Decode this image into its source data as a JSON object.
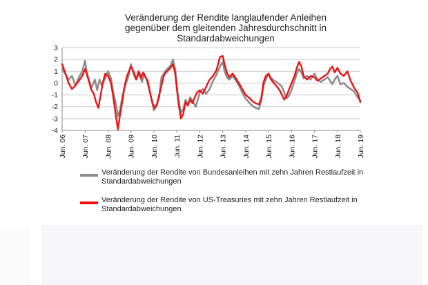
{
  "chart_data": {
    "type": "line",
    "title": [
      "Veränderung der Rendite langlaufender Anleihen",
      "gegenüber dem gleitenden Jahresdurchschnitt in",
      "Standardabweichungen"
    ],
    "xlabel": "",
    "ylabel": "",
    "ylim": [
      -4,
      3
    ],
    "y_ticks": [
      "3",
      "2",
      "1",
      "0",
      "-1",
      "-2",
      "-3",
      "-4"
    ],
    "x_ticks": [
      "Jun. 06",
      "Jun. 07",
      "Jun. 08",
      "Jun. 09",
      "Jun. 10",
      "Jun. 11",
      "Jun. 12",
      "Jun. 13",
      "Jun. 14",
      "Jun. 15",
      "Jun. 16",
      "Jun. 17",
      "Jun. 18",
      "Jun. 19"
    ],
    "xlim": [
      2006.42,
      2019.42
    ],
    "grid": "horizontal",
    "legend": "bottom",
    "series": [
      {
        "name": "Veränderung der Rendite von Bundesanleihen mit zehn Jahren Restlaufzeit in Standardabweichungen",
        "color": "#8c8c8c",
        "x": [
          2006.42,
          2006.55,
          2006.7,
          2006.85,
          2007.0,
          2007.15,
          2007.3,
          2007.42,
          2007.5,
          2007.6,
          2007.7,
          2007.85,
          2007.95,
          2008.05,
          2008.15,
          2008.3,
          2008.42,
          2008.55,
          2008.65,
          2008.75,
          2008.85,
          2008.95,
          2009.05,
          2009.15,
          2009.3,
          2009.42,
          2009.55,
          2009.65,
          2009.8,
          2009.9,
          2010.0,
          2010.1,
          2010.2,
          2010.3,
          2010.42,
          2010.55,
          2010.65,
          2010.75,
          2010.85,
          2010.95,
          2011.05,
          2011.15,
          2011.25,
          2011.35,
          2011.42,
          2011.5,
          2011.6,
          2011.7,
          2011.8,
          2011.9,
          2012.0,
          2012.1,
          2012.25,
          2012.42,
          2012.55,
          2012.7,
          2012.85,
          2013.0,
          2013.15,
          2013.3,
          2013.42,
          2013.5,
          2013.6,
          2013.7,
          2013.85,
          2014.0,
          2014.15,
          2014.3,
          2014.42,
          2014.55,
          2014.7,
          2014.85,
          2015.0,
          2015.1,
          2015.2,
          2015.3,
          2015.42,
          2015.5,
          2015.6,
          2015.75,
          2015.9,
          2016.0,
          2016.1,
          2016.2,
          2016.3,
          2016.42,
          2016.55,
          2016.65,
          2016.75,
          2016.85,
          2016.95,
          2017.1,
          2017.25,
          2017.42,
          2017.55,
          2017.7,
          2017.85,
          2018.0,
          2018.1,
          2018.2,
          2018.3,
          2018.42,
          2018.55,
          2018.7,
          2018.85,
          2019.0,
          2019.15,
          2019.3,
          2019.42
        ],
        "y": [
          1.2,
          0.8,
          0.3,
          0.6,
          -0.2,
          0.5,
          1.0,
          1.9,
          0.9,
          0.2,
          -0.4,
          0.3,
          -0.6,
          0.3,
          -0.2,
          0.4,
          1.0,
          0.4,
          -0.8,
          -1.6,
          -2.8,
          -2.2,
          -1.1,
          -0.3,
          0.5,
          1.6,
          0.7,
          0.3,
          0.9,
          0.1,
          0.8,
          0.3,
          -0.4,
          -1.2,
          -2.3,
          -1.9,
          -1.2,
          0.5,
          0.8,
          1.1,
          1.3,
          1.5,
          2.0,
          1.2,
          -0.3,
          -1.5,
          -2.5,
          -2.2,
          -1.4,
          -1.8,
          -1.2,
          -1.5,
          -2.0,
          -0.8,
          -0.5,
          -0.9,
          -0.5,
          0.2,
          0.7,
          1.4,
          1.8,
          1.0,
          0.5,
          0.3,
          0.6,
          0.2,
          -0.3,
          -0.9,
          -1.3,
          -1.6,
          -1.9,
          -2.1,
          -2.2,
          -1.5,
          -0.2,
          0.3,
          0.8,
          0.5,
          0.3,
          0.1,
          -0.1,
          -0.3,
          -0.8,
          -1.3,
          -1.1,
          -0.6,
          0.2,
          0.8,
          1.2,
          0.9,
          0.4,
          0.6,
          0.3,
          0.8,
          0.3,
          0.1,
          0.3,
          0.5,
          0.2,
          -0.1,
          0.3,
          0.6,
          -0.1,
          0.0,
          -0.3,
          -0.5,
          -0.7,
          -1.2,
          -1.5
        ]
      },
      {
        "name": "Veränderung der Rendite von US-Treasuries mit zehn Jahren Restlaufzeit in Standardabweichungen",
        "color": "#ee1111",
        "x": [
          2006.42,
          2006.55,
          2006.7,
          2006.85,
          2007.0,
          2007.15,
          2007.3,
          2007.42,
          2007.5,
          2007.6,
          2007.7,
          2007.8,
          2007.9,
          2008.0,
          2008.1,
          2008.2,
          2008.3,
          2008.42,
          2008.55,
          2008.65,
          2008.75,
          2008.85,
          2008.95,
          2009.05,
          2009.15,
          2009.25,
          2009.42,
          2009.55,
          2009.65,
          2009.75,
          2009.85,
          2009.95,
          2010.05,
          2010.15,
          2010.25,
          2010.35,
          2010.45,
          2010.55,
          2010.65,
          2010.75,
          2010.85,
          2010.95,
          2011.05,
          2011.15,
          2011.25,
          2011.35,
          2011.42,
          2011.5,
          2011.6,
          2011.7,
          2011.8,
          2011.9,
          2012.0,
          2012.1,
          2012.2,
          2012.3,
          2012.42,
          2012.55,
          2012.7,
          2012.85,
          2013.0,
          2013.15,
          2013.3,
          2013.42,
          2013.5,
          2013.6,
          2013.7,
          2013.85,
          2014.0,
          2014.15,
          2014.3,
          2014.42,
          2014.55,
          2014.7,
          2014.85,
          2015.0,
          2015.1,
          2015.2,
          2015.3,
          2015.42,
          2015.5,
          2015.6,
          2015.75,
          2015.9,
          2016.0,
          2016.1,
          2016.2,
          2016.3,
          2016.42,
          2016.55,
          2016.65,
          2016.75,
          2016.85,
          2016.95,
          2017.1,
          2017.25,
          2017.42,
          2017.55,
          2017.7,
          2017.85,
          2018.0,
          2018.1,
          2018.2,
          2018.3,
          2018.42,
          2018.55,
          2018.7,
          2018.85,
          2019.0,
          2019.15,
          2019.3,
          2019.42
        ],
        "y": [
          1.6,
          0.9,
          0.0,
          -0.5,
          -0.2,
          0.2,
          0.6,
          1.2,
          0.7,
          0.1,
          -0.6,
          -0.9,
          -1.6,
          -2.1,
          -1.0,
          0.1,
          0.8,
          0.6,
          0.0,
          -1.2,
          -2.6,
          -3.9,
          -2.6,
          -1.5,
          -0.2,
          0.6,
          1.4,
          0.9,
          0.3,
          1.0,
          0.4,
          0.9,
          0.5,
          0.2,
          -0.8,
          -1.6,
          -2.1,
          -1.8,
          -1.0,
          -0.2,
          0.6,
          0.9,
          1.1,
          1.3,
          1.6,
          0.8,
          -0.5,
          -1.8,
          -3.0,
          -2.6,
          -1.6,
          -1.9,
          -1.4,
          -1.7,
          -1.2,
          -0.8,
          -0.6,
          -0.9,
          -0.3,
          0.3,
          0.6,
          1.1,
          2.2,
          2.3,
          1.6,
          0.9,
          0.5,
          0.8,
          0.4,
          -0.1,
          -0.6,
          -1.0,
          -1.2,
          -1.5,
          -1.7,
          -1.8,
          -1.3,
          0.1,
          0.6,
          0.8,
          0.4,
          0.1,
          -0.2,
          -0.6,
          -1.0,
          -1.4,
          -1.1,
          -0.6,
          0.0,
          0.6,
          1.3,
          1.8,
          1.4,
          0.6,
          0.3,
          0.6,
          0.5,
          0.2,
          0.4,
          0.6,
          0.8,
          1.2,
          1.4,
          0.9,
          1.3,
          0.8,
          0.6,
          1.0,
          0.2,
          -0.4,
          -0.8,
          -1.6
        ]
      }
    ]
  }
}
